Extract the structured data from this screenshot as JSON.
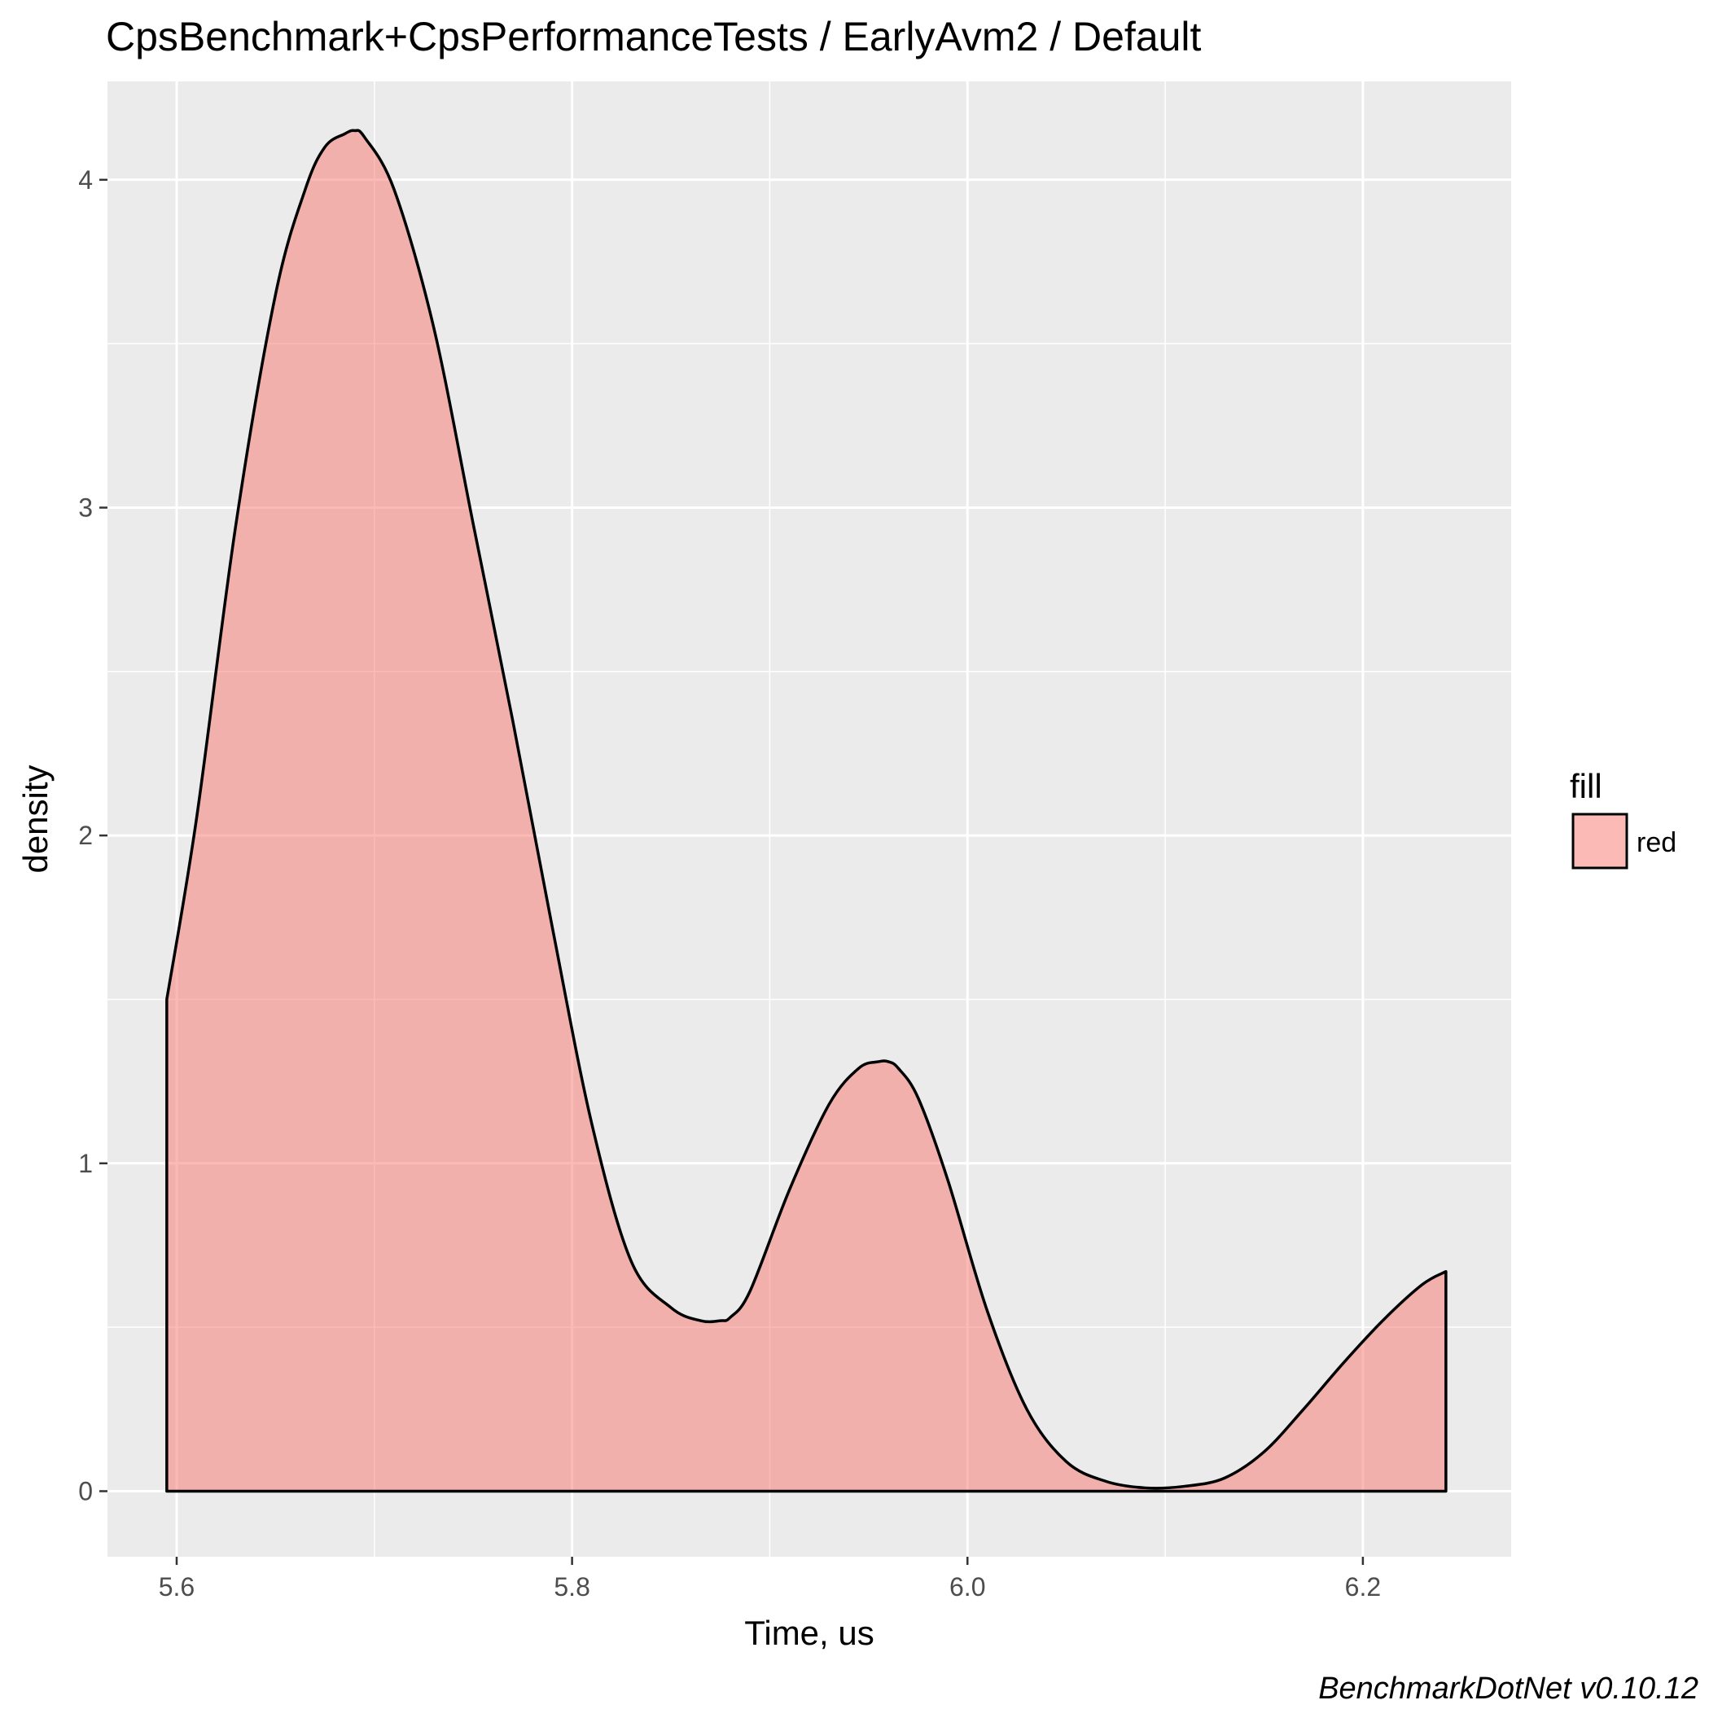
{
  "chart_data": {
    "type": "area",
    "title": "CpsBenchmark+CpsPerformanceTests / EarlyAvm2 / Default",
    "xlabel": "Time, us",
    "ylabel": "density",
    "caption": "BenchmarkDotNet v0.10.12",
    "xlim": [
      5.565,
      6.275
    ],
    "ylim": [
      -0.2,
      4.3
    ],
    "x_ticks": [
      5.6,
      5.8,
      6.0,
      6.2
    ],
    "x_tick_labels": [
      "5.6",
      "5.8",
      "6.0",
      "6.2"
    ],
    "y_ticks": [
      0,
      1,
      2,
      3,
      4
    ],
    "y_tick_labels": [
      "0",
      "1",
      "2",
      "3",
      "4"
    ],
    "grid": true,
    "legend": {
      "title": "fill",
      "entries": [
        {
          "label": "red",
          "color": "#F8766D"
        }
      ],
      "position": "right"
    },
    "series": [
      {
        "name": "red",
        "fill": "#F8766D",
        "fill_opacity": 0.5,
        "stroke": "#000000",
        "x": [
          5.595,
          5.61,
          5.63,
          5.65,
          5.665,
          5.675,
          5.685,
          5.69,
          5.695,
          5.71,
          5.73,
          5.75,
          5.77,
          5.79,
          5.81,
          5.83,
          5.85,
          5.865,
          5.875,
          5.88,
          5.89,
          5.91,
          5.93,
          5.945,
          5.955,
          5.96,
          5.965,
          5.975,
          5.99,
          6.01,
          6.03,
          6.05,
          6.07,
          6.09,
          6.11,
          6.13,
          6.15,
          6.17,
          6.19,
          6.21,
          6.23,
          6.242
        ],
        "y": [
          1.5,
          2.05,
          2.95,
          3.65,
          3.97,
          4.1,
          4.14,
          4.15,
          4.13,
          3.97,
          3.55,
          2.95,
          2.35,
          1.72,
          1.12,
          0.7,
          0.56,
          0.52,
          0.52,
          0.53,
          0.61,
          0.92,
          1.18,
          1.29,
          1.31,
          1.31,
          1.29,
          1.2,
          0.95,
          0.55,
          0.25,
          0.09,
          0.03,
          0.01,
          0.015,
          0.04,
          0.12,
          0.25,
          0.39,
          0.52,
          0.63,
          0.67
        ]
      }
    ]
  }
}
